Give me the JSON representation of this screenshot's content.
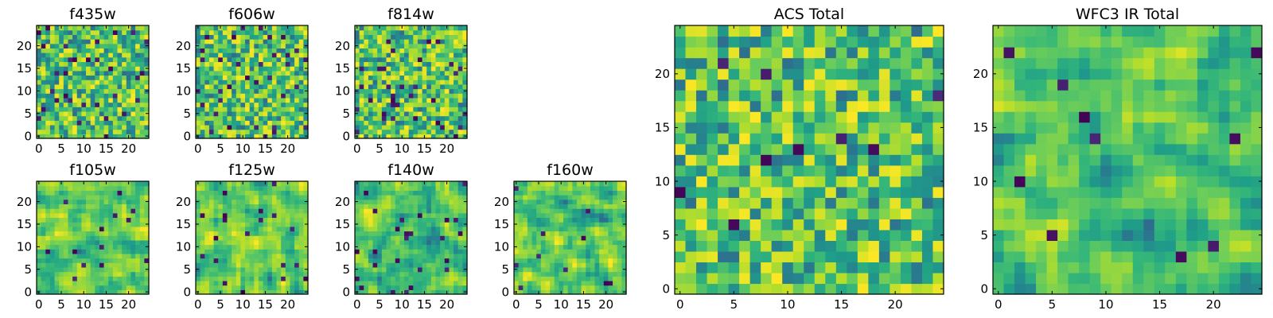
{
  "chart_data": {
    "type": "heatmap",
    "colormap": "viridis",
    "grid_size": 25,
    "panels": [
      {
        "title": "f435w",
        "xlim": [
          0,
          24
        ],
        "ylim": [
          0,
          24
        ],
        "xticks": [
          "0",
          "5",
          "10",
          "15",
          "20"
        ],
        "yticks": [
          "0",
          "5",
          "10",
          "15",
          "20"
        ]
      },
      {
        "title": "f606w",
        "xlim": [
          0,
          24
        ],
        "ylim": [
          0,
          24
        ],
        "xticks": [
          "0",
          "5",
          "10",
          "15",
          "20"
        ],
        "yticks": [
          "0",
          "5",
          "10",
          "15",
          "20"
        ]
      },
      {
        "title": "f814w",
        "xlim": [
          0,
          24
        ],
        "ylim": [
          0,
          24
        ],
        "xticks": [
          "0",
          "5",
          "10",
          "15",
          "20"
        ],
        "yticks": [
          "0",
          "5",
          "10",
          "15",
          "20"
        ]
      },
      {
        "title": "f105w",
        "xlim": [
          0,
          24
        ],
        "ylim": [
          0,
          24
        ],
        "xticks": [
          "0",
          "5",
          "10",
          "15",
          "20"
        ],
        "yticks": [
          "0",
          "5",
          "10",
          "15",
          "20"
        ]
      },
      {
        "title": "f125w",
        "xlim": [
          0,
          24
        ],
        "ylim": [
          0,
          24
        ],
        "xticks": [
          "0",
          "5",
          "10",
          "15",
          "20"
        ],
        "yticks": [
          "0",
          "5",
          "10",
          "15",
          "20"
        ]
      },
      {
        "title": "f140w",
        "xlim": [
          0,
          24
        ],
        "ylim": [
          0,
          24
        ],
        "xticks": [
          "0",
          "5",
          "10",
          "15",
          "20"
        ],
        "yticks": [
          "0",
          "5",
          "10",
          "15",
          "20"
        ]
      },
      {
        "title": "f160w",
        "xlim": [
          0,
          24
        ],
        "ylim": [
          0,
          24
        ],
        "xticks": [
          "0",
          "5",
          "10",
          "15",
          "20"
        ],
        "yticks": [
          "0",
          "5",
          "10",
          "15",
          "20"
        ]
      },
      {
        "title": "ACS Total",
        "xlim": [
          0,
          24
        ],
        "ylim": [
          0,
          24
        ],
        "xticks": [
          "0",
          "5",
          "10",
          "15",
          "20"
        ],
        "yticks": [
          "0",
          "5",
          "10",
          "15",
          "20"
        ]
      },
      {
        "title": "WFC3 IR Total",
        "xlim": [
          0,
          24
        ],
        "ylim": [
          0,
          24
        ],
        "xticks": [
          "0",
          "5",
          "10",
          "15",
          "20"
        ],
        "yticks": [
          "0",
          "5",
          "10",
          "15",
          "20"
        ]
      }
    ]
  }
}
